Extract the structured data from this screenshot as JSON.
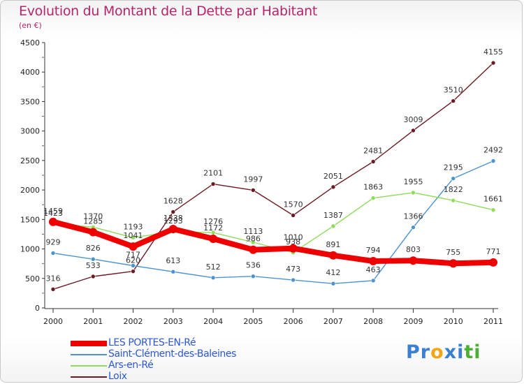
{
  "title": "Evolution du Montant de la Dette par Habitant",
  "unit": "(en €)",
  "logo": {
    "text": "Proxiti",
    "letters": [
      {
        "ch": "P",
        "color": "#3a7fd0"
      },
      {
        "ch": "r",
        "color": "#3a7fd0"
      },
      {
        "ch": "o",
        "color": "#f2a516"
      },
      {
        "ch": "x",
        "color": "#3a7fd0"
      },
      {
        "ch": "i",
        "color": "#3a7fd0"
      },
      {
        "ch": "t",
        "color": "#4cae35"
      },
      {
        "ch": "i",
        "color": "#4cae35"
      }
    ]
  },
  "chart_data": {
    "type": "line",
    "title": "Evolution du Montant de la Dette par Habitant",
    "subtitle": "(en €)",
    "x": [
      "2000",
      "2001",
      "2002",
      "2003",
      "2004",
      "2005",
      "2006",
      "2007",
      "2008",
      "2009",
      "2010",
      "2011"
    ],
    "ylim": [
      0,
      4500
    ],
    "yticks": [
      0,
      500,
      1000,
      1500,
      2000,
      2500,
      3000,
      3500,
      4000,
      4500
    ],
    "grid": false,
    "legend_position": "bottom-left",
    "series": [
      {
        "name": "Loix",
        "color": "#6b1a22",
        "values": [
          316,
          533,
          620,
          1628,
          2101,
          1997,
          1570,
          2051,
          2481,
          3009,
          3510,
          4155
        ]
      },
      {
        "name": "Saint-Clément-des-Baleines",
        "color": "#4c92cf",
        "values": [
          929,
          826,
          717,
          613,
          512,
          536,
          473,
          412,
          463,
          1366,
          2195,
          2492
        ]
      },
      {
        "name": "Ars-en-Ré",
        "color": "#8fdb5a",
        "values": [
          1423,
          1370,
          1193,
          1293,
          1276,
          1113,
          938,
          1387,
          1863,
          1955,
          1822,
          1661
        ]
      },
      {
        "name": "LES PORTES-EN-Ré",
        "color": "#ee0000",
        "values": [
          1459,
          1285,
          1041,
          1338,
          1172,
          986,
          1010,
          891,
          794,
          803,
          755,
          771
        ]
      }
    ],
    "legend_order": [
      "LES PORTES-EN-Ré",
      "Saint-Clément-des-Baleines",
      "Ars-en-Ré",
      "Loix"
    ]
  }
}
